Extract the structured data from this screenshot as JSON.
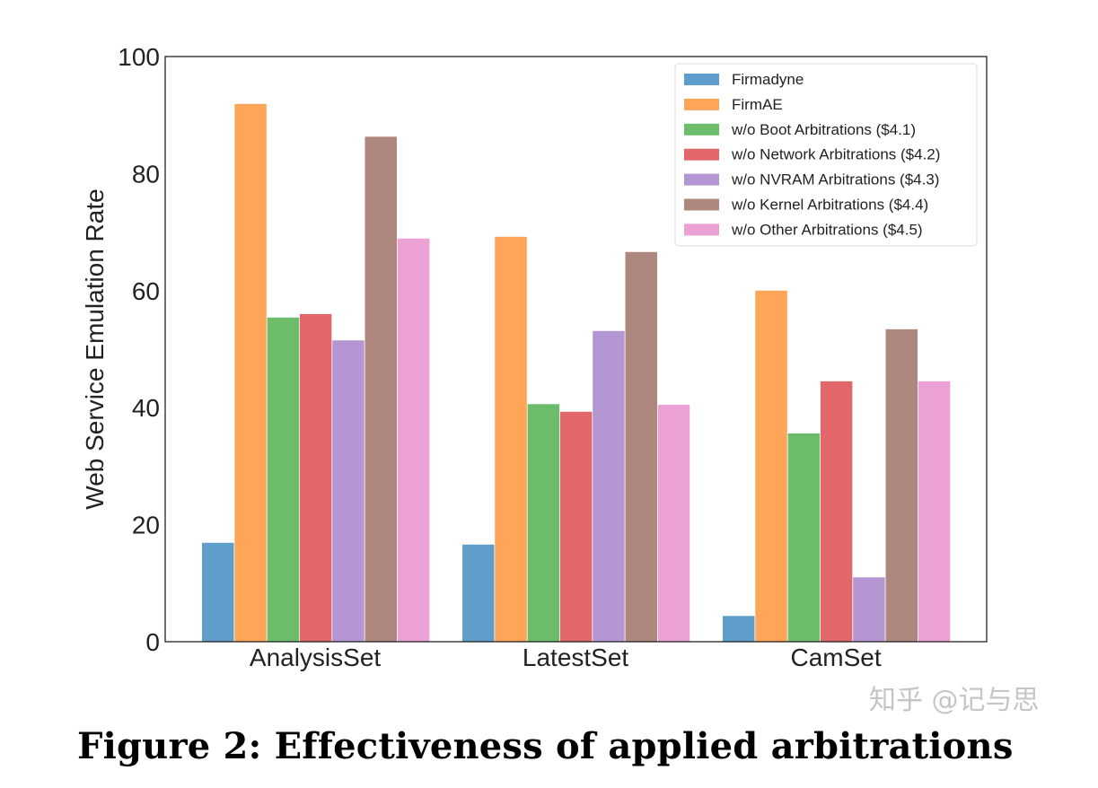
{
  "chart_data": {
    "type": "bar",
    "title": "",
    "xlabel": "",
    "ylabel": "Web Service Emulation Rate",
    "ylim": [
      0,
      100
    ],
    "yticks": [
      0,
      20,
      40,
      60,
      80,
      100
    ],
    "grid": false,
    "legend_position": "top-right",
    "categories": [
      "AnalysisSet",
      "LatestSet",
      "CamSet"
    ],
    "series": [
      {
        "name": "Firmadyne",
        "color": "#5f9ecb",
        "values": [
          16.9,
          16.6,
          4.4
        ]
      },
      {
        "name": "FirmAE",
        "color": "#fea557",
        "values": [
          91.9,
          69.2,
          60.0
        ]
      },
      {
        "name": "w/o Boot Arbitrations ($4.1)",
        "color": "#6bbd6b",
        "values": [
          55.4,
          40.6,
          35.6
        ]
      },
      {
        "name": "w/o Network Arbitrations ($4.2)",
        "color": "#e2676a",
        "values": [
          56.0,
          39.3,
          44.5
        ]
      },
      {
        "name": "w/o NVRAM Arbitrations ($4.3)",
        "color": "#b496d2",
        "values": [
          51.5,
          53.1,
          11.0
        ]
      },
      {
        "name": "w/o Kernel Arbitrations ($4.4)",
        "color": "#ae887e",
        "values": [
          86.3,
          66.6,
          53.4
        ]
      },
      {
        "name": "w/o Other Arbitrations ($4.5)",
        "color": "#eca1d5",
        "values": [
          68.9,
          40.5,
          44.5
        ]
      }
    ]
  },
  "caption": "Figure 2: Effectiveness of applied arbitrations",
  "watermark": "知乎 @记与思"
}
